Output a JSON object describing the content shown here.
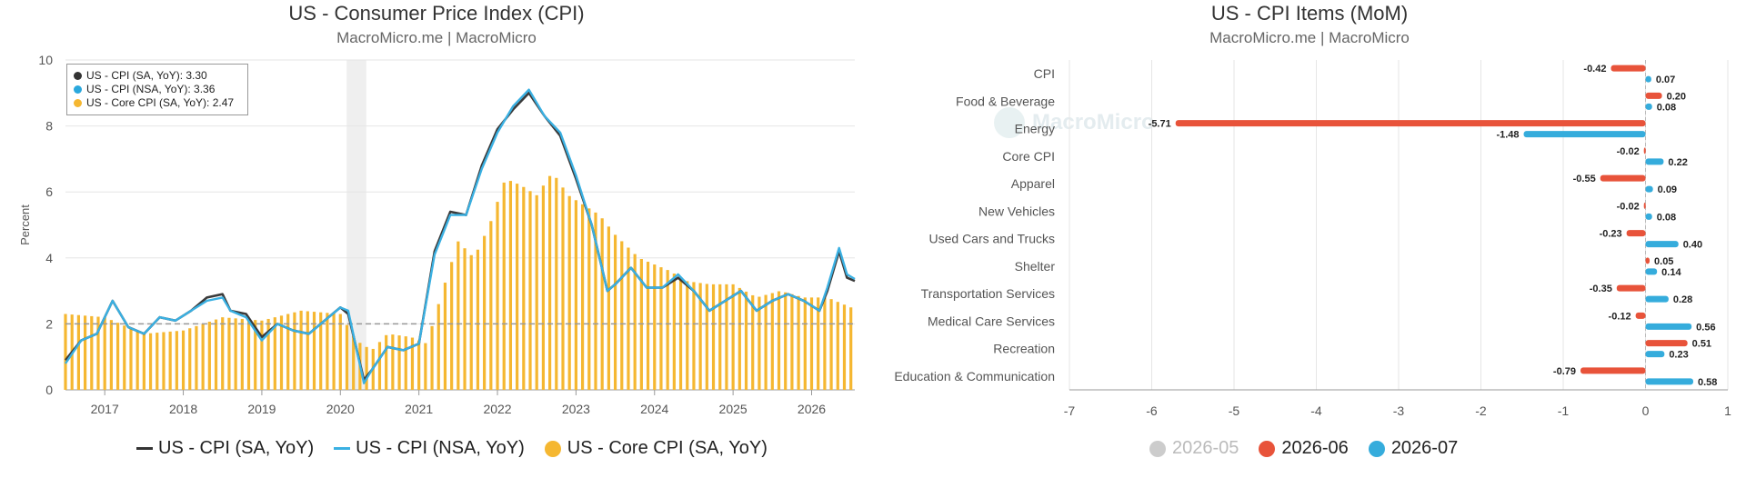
{
  "chart_data": [
    {
      "type": "line",
      "title": "US - Consumer Price Index (CPI)",
      "subtitle": "MacroMicro.me | MacroMicro",
      "ylabel": "Percent",
      "ylim": [
        0,
        10
      ],
      "yticks": [
        0,
        2,
        4,
        6,
        8,
        10
      ],
      "xlim": [
        2016.5,
        2026.55
      ],
      "xticks": [
        2017,
        2018,
        2019,
        2020,
        2021,
        2022,
        2023,
        2024,
        2025,
        2026
      ],
      "reference_line": 2,
      "shaded_period": [
        2020.08,
        2020.33
      ],
      "tooltip": [
        {
          "label": "US - CPI (SA, YoY): 3.30",
          "color": "#333333"
        },
        {
          "label": "US - CPI (NSA, YoY): 3.36",
          "color": "#2aa8dd"
        },
        {
          "label": "US - Core CPI (SA, YoY): 2.47",
          "color": "#f5b731"
        }
      ],
      "legend": [
        {
          "label": "US - CPI (SA, YoY)",
          "color": "#333333",
          "kind": "line"
        },
        {
          "label": "US - CPI (NSA, YoY)",
          "color": "#3ab0e2",
          "kind": "line"
        },
        {
          "label": "US - Core CPI (SA, YoY)",
          "color": "#f5b731",
          "kind": "dot"
        }
      ],
      "series": [
        {
          "name": "US - CPI (SA, YoY)",
          "color": "#3a3a3a",
          "x": [
            2016.5,
            2016.7,
            2016.9,
            2017.1,
            2017.3,
            2017.5,
            2017.7,
            2017.9,
            2018.1,
            2018.3,
            2018.5,
            2018.6,
            2018.8,
            2019.0,
            2019.2,
            2019.4,
            2019.6,
            2019.8,
            2020.0,
            2020.1,
            2020.3,
            2020.4,
            2020.6,
            2020.8,
            2021.0,
            2021.2,
            2021.4,
            2021.6,
            2021.8,
            2022.0,
            2022.2,
            2022.4,
            2022.6,
            2022.8,
            2023.0,
            2023.2,
            2023.4,
            2023.5,
            2023.7,
            2023.9,
            2024.1,
            2024.3,
            2024.5,
            2024.7,
            2024.9,
            2025.1,
            2025.3,
            2025.5,
            2025.7,
            2025.9,
            2026.1,
            2026.2,
            2026.35,
            2026.45,
            2026.55
          ],
          "values": [
            0.9,
            1.5,
            1.7,
            2.7,
            1.9,
            1.7,
            2.2,
            2.1,
            2.4,
            2.8,
            2.9,
            2.4,
            2.3,
            1.6,
            2.0,
            1.8,
            1.7,
            2.1,
            2.5,
            2.3,
            0.3,
            0.6,
            1.3,
            1.2,
            1.4,
            4.2,
            5.4,
            5.3,
            6.8,
            7.9,
            8.5,
            9.0,
            8.3,
            7.7,
            6.4,
            5.0,
            3.0,
            3.2,
            3.7,
            3.1,
            3.1,
            3.4,
            3.0,
            2.4,
            2.7,
            3.0,
            2.4,
            2.7,
            2.9,
            2.7,
            2.4,
            3.0,
            4.2,
            3.4,
            3.3
          ]
        },
        {
          "name": "US - CPI (NSA, YoY)",
          "color": "#3ab0e2",
          "x": [
            2016.5,
            2016.7,
            2016.9,
            2017.1,
            2017.3,
            2017.5,
            2017.7,
            2017.9,
            2018.1,
            2018.3,
            2018.5,
            2018.6,
            2018.8,
            2019.0,
            2019.2,
            2019.4,
            2019.6,
            2019.8,
            2020.0,
            2020.1,
            2020.3,
            2020.4,
            2020.6,
            2020.8,
            2021.0,
            2021.2,
            2021.4,
            2021.6,
            2021.8,
            2022.0,
            2022.2,
            2022.4,
            2022.6,
            2022.8,
            2023.0,
            2023.2,
            2023.4,
            2023.5,
            2023.7,
            2023.9,
            2024.1,
            2024.3,
            2024.5,
            2024.7,
            2024.9,
            2025.1,
            2025.3,
            2025.5,
            2025.7,
            2025.9,
            2026.1,
            2026.2,
            2026.35,
            2026.45,
            2026.55
          ],
          "values": [
            0.8,
            1.5,
            1.7,
            2.7,
            1.9,
            1.7,
            2.2,
            2.1,
            2.4,
            2.7,
            2.8,
            2.4,
            2.2,
            1.5,
            2.0,
            1.8,
            1.7,
            2.1,
            2.5,
            2.4,
            0.2,
            0.6,
            1.3,
            1.2,
            1.4,
            4.1,
            5.3,
            5.3,
            6.7,
            7.8,
            8.6,
            9.1,
            8.3,
            7.8,
            6.5,
            5.0,
            3.0,
            3.2,
            3.7,
            3.1,
            3.1,
            3.5,
            3.0,
            2.4,
            2.7,
            3.0,
            2.4,
            2.7,
            2.9,
            2.7,
            2.4,
            3.1,
            4.3,
            3.5,
            3.36
          ]
        },
        {
          "name": "US - Core CPI (SA, YoY)",
          "color": "#f5b731",
          "kind": "bar",
          "x": [
            2016.5,
            2017.0,
            2017.5,
            2018.0,
            2018.5,
            2019.0,
            2019.5,
            2020.0,
            2020.2,
            2020.4,
            2020.6,
            2020.9,
            2021.1,
            2021.3,
            2021.5,
            2021.7,
            2021.9,
            2022.1,
            2022.3,
            2022.5,
            2022.7,
            2022.9,
            2023.1,
            2023.3,
            2023.5,
            2023.8,
            2024.0,
            2024.2,
            2024.4,
            2024.7,
            2025.0,
            2025.3,
            2025.6,
            2025.9,
            2026.2,
            2026.5
          ],
          "values": [
            2.3,
            2.2,
            1.7,
            1.8,
            2.2,
            2.1,
            2.4,
            2.3,
            1.5,
            1.2,
            1.7,
            1.6,
            1.4,
            3.0,
            4.5,
            4.0,
            5.0,
            6.4,
            6.2,
            5.9,
            6.6,
            5.9,
            5.6,
            5.3,
            4.7,
            4.0,
            3.8,
            3.6,
            3.3,
            3.2,
            3.2,
            2.8,
            3.0,
            2.8,
            2.8,
            2.5
          ]
        }
      ]
    },
    {
      "type": "bar",
      "orientation": "horizontal",
      "title": "US - CPI Items (MoM)",
      "subtitle": "MacroMicro.me | MacroMicro",
      "watermark": "MacroMicro",
      "xlim": [
        -7,
        1
      ],
      "xticks": [
        -7,
        -6,
        -5,
        -4,
        -3,
        -2,
        -1,
        0,
        1
      ],
      "categories": [
        "CPI",
        "Food & Beverage",
        "Energy",
        "Core CPI",
        "Apparel",
        "New Vehicles",
        "Used Cars and Trucks",
        "Shelter",
        "Transportation Services",
        "Medical Care Services",
        "Recreation",
        "Education & Communication"
      ],
      "legend": [
        {
          "label": "2026-05",
          "color": "#cccccc",
          "muted": true
        },
        {
          "label": "2026-06",
          "color": "#e8533a",
          "muted": false
        },
        {
          "label": "2026-07",
          "color": "#35acdc",
          "muted": false
        }
      ],
      "series": [
        {
          "name": "2026-06",
          "color": "#e8533a",
          "values": [
            -0.42,
            0.2,
            -5.71,
            -0.02,
            -0.55,
            -0.02,
            -0.23,
            0.05,
            -0.35,
            -0.12,
            0.51,
            -0.79
          ],
          "labels": [
            "-0.42",
            "0.20",
            "-5.71",
            "-0.02",
            "-0.55",
            "-0.02",
            "-0.23",
            "0.05",
            "-0.35",
            "-0.12",
            "0.51",
            "-0.79"
          ]
        },
        {
          "name": "2026-07",
          "color": "#35acdc",
          "values": [
            0.07,
            0.08,
            -1.48,
            0.22,
            0.09,
            0.08,
            0.4,
            0.14,
            0.28,
            0.56,
            0.23,
            0.58
          ],
          "labels": [
            "0.07",
            "0.08",
            "-1.48",
            "0.22",
            "0.09",
            "0.08",
            "0.40",
            "0.14",
            "0.28",
            "0.56",
            "0.23",
            "0.58"
          ]
        }
      ]
    }
  ]
}
